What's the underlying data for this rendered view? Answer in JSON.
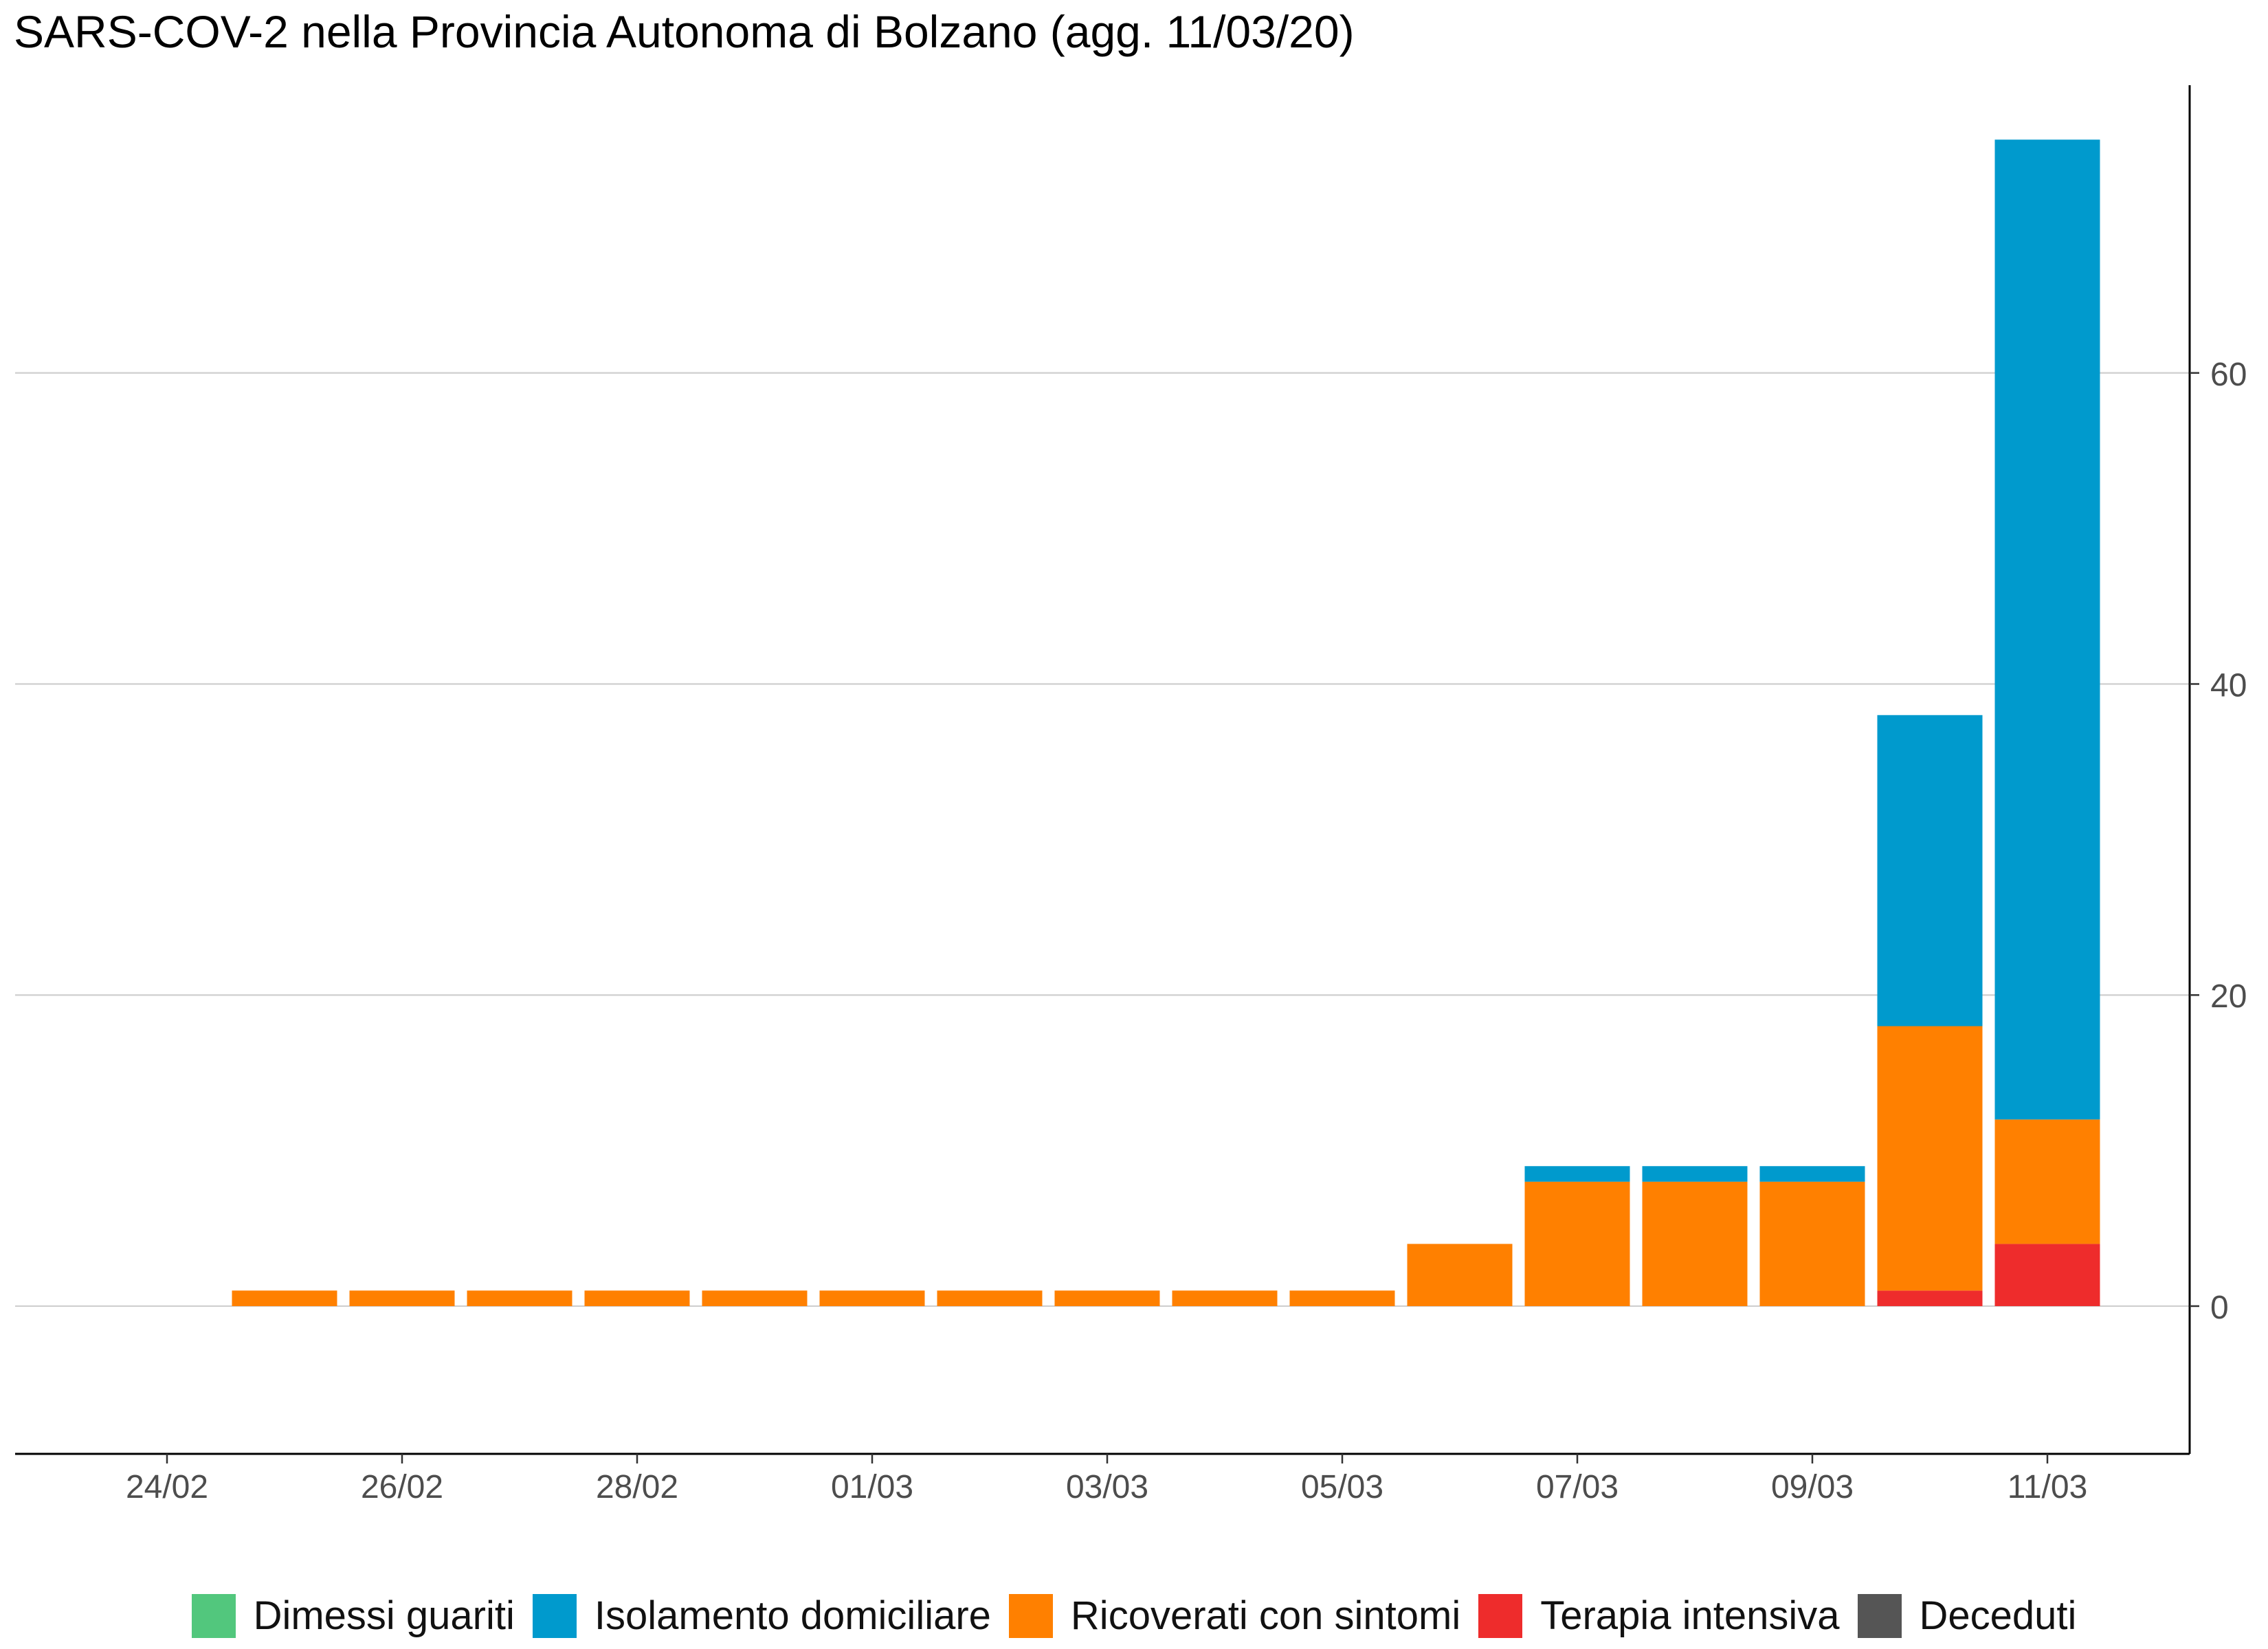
{
  "chart_data": {
    "type": "bar",
    "stacked": true,
    "title": "SARS-COV-2 nella Provincia Autonoma di Bolzano (agg. 11/03/20)",
    "xlabel": "",
    "ylabel": "",
    "ylim": [
      -9.5,
      78.5
    ],
    "grid": true,
    "legend_position": "bottom",
    "y_axis_side": "right",
    "y_ticks": [
      "0",
      "20",
      "40",
      "60"
    ],
    "x_ticks": [
      "24/02",
      "26/02",
      "28/02",
      "01/03",
      "03/03",
      "05/03",
      "07/03",
      "09/03",
      "11/03"
    ],
    "categories": [
      "24/02",
      "25/02",
      "26/02",
      "27/02",
      "28/02",
      "29/02",
      "01/03",
      "02/03",
      "03/03",
      "04/03",
      "05/03",
      "06/03",
      "07/03",
      "08/03",
      "09/03",
      "10/03",
      "11/03"
    ],
    "series": [
      {
        "name": "Dimessi guariti",
        "color": "#52c77d",
        "values": [
          0,
          0,
          0,
          0,
          0,
          0,
          0,
          0,
          0,
          0,
          0,
          0,
          0,
          0,
          0,
          0,
          0
        ]
      },
      {
        "name": "Isolamento domiciliare",
        "color": "#009acd",
        "values": [
          0,
          0,
          0,
          0,
          0,
          0,
          0,
          0,
          0,
          0,
          0,
          0,
          1,
          1,
          1,
          20,
          63
        ]
      },
      {
        "name": "Ricoverati con sintomi",
        "color": "#ff8000",
        "values": [
          0,
          1,
          1,
          1,
          1,
          1,
          1,
          1,
          1,
          1,
          1,
          4,
          8,
          8,
          8,
          17,
          8
        ]
      },
      {
        "name": "Terapia intensiva",
        "color": "#ee2c2c",
        "values": [
          0,
          0,
          0,
          0,
          0,
          0,
          0,
          0,
          0,
          0,
          0,
          0,
          0,
          0,
          0,
          1,
          4
        ]
      },
      {
        "name": "Deceduti",
        "color": "#555555",
        "values": [
          0,
          0,
          0,
          0,
          0,
          0,
          0,
          0,
          0,
          0,
          0,
          0,
          0,
          0,
          0,
          0,
          0
        ]
      }
    ],
    "stack_order_bottom_to_top": [
      "Deceduti",
      "Terapia intensiva",
      "Ricoverati con sintomi",
      "Isolamento domiciliare",
      "Dimessi guariti"
    ]
  }
}
